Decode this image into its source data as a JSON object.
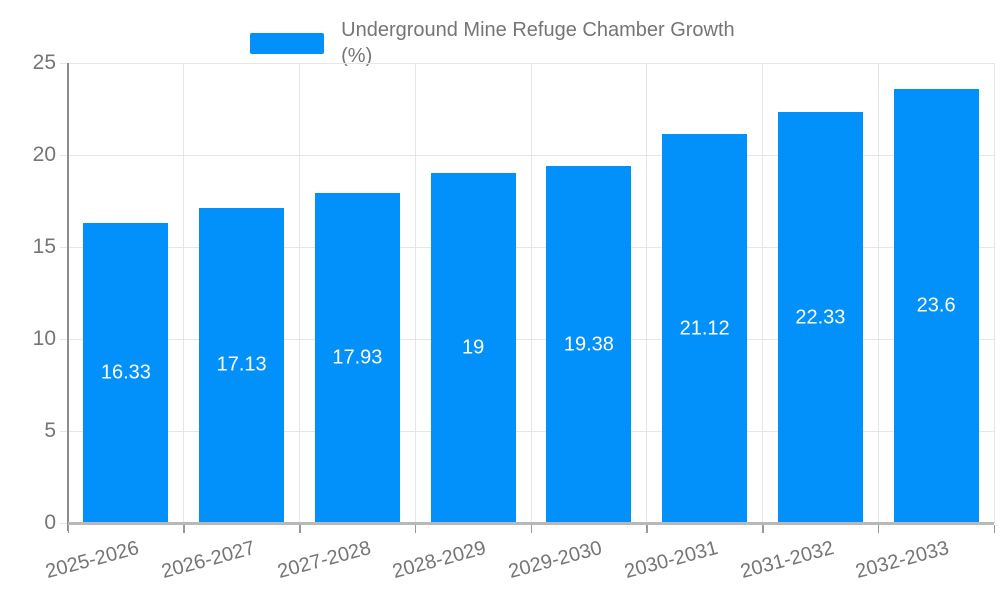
{
  "legend": {
    "label": "Underground Mine Refuge Chamber Growth (%)"
  },
  "chart_data": {
    "type": "bar",
    "title": "Underground Mine Refuge Chamber Growth (%)",
    "categories": [
      "2025-2026",
      "2026-2027",
      "2027-2028",
      "2028-2029",
      "2029-2030",
      "2030-2031",
      "2031-2032",
      "2032-2033"
    ],
    "values": [
      16.33,
      17.13,
      17.93,
      19,
      19.38,
      21.12,
      22.33,
      23.6
    ],
    "value_labels": [
      "16.33",
      "17.13",
      "17.93",
      "19",
      "19.38",
      "21.12",
      "22.33",
      "23.6"
    ],
    "xlabel": "",
    "ylabel": "",
    "ylim": [
      0,
      25
    ],
    "yticks": [
      0,
      5,
      10,
      15,
      20,
      25
    ],
    "grid": true,
    "legend_position": "top-center",
    "colors": {
      "bar": "#0290fa",
      "grid": "#e6e6e6",
      "y_axis": "#8c8c8c",
      "x_axis": "#b8b8b8",
      "tick": "#999999",
      "axis_text": "#757575",
      "bar_label": "#ffffff"
    }
  }
}
